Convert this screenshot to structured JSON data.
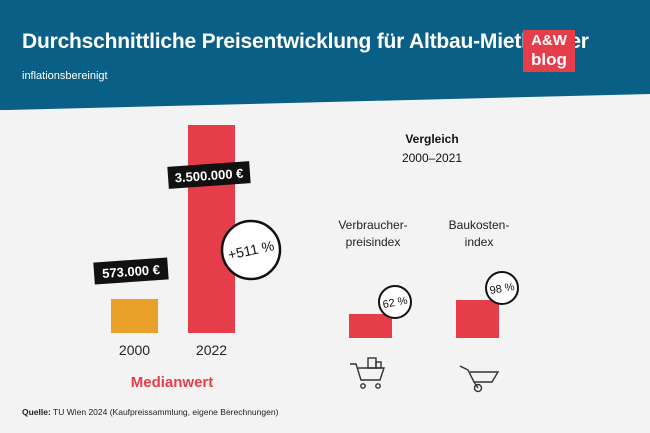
{
  "header": {
    "title": "Durchschnittliche Preisentwicklung für Altbau-Miethäuser",
    "subtitle": "inflationsbereinigt",
    "logo_top": "A&W",
    "logo_bottom": "blog"
  },
  "colors": {
    "banner": "#0a5f86",
    "accent_red": "#e63d4b",
    "orange": "#e8a02a",
    "label_bg": "#111111"
  },
  "chart_data": [
    {
      "type": "bar",
      "categories": [
        "2000",
        "2022"
      ],
      "values": [
        573000,
        3500000
      ],
      "value_labels": [
        "573.000 €",
        "3.500.000 €"
      ],
      "colors": [
        "#e8a02a",
        "#e63d4b"
      ],
      "annotation": "+511 %",
      "xlabel": "Medianwert"
    },
    {
      "type": "bar",
      "title": "Vergleich",
      "subtitle": "2000–2021",
      "categories": [
        "Verbraucher-\npreisindex",
        "Baukosten-\nindex"
      ],
      "values": [
        62,
        98
      ],
      "value_labels": [
        "62 %",
        "98 %"
      ],
      "icons": [
        "shopping-cart-icon",
        "wheelbarrow-icon"
      ]
    }
  ],
  "footer": {
    "source_label": "Quelle:",
    "source_text": " TU Wien 2024 (Kaufpreissammlung, eigene Berechnungen)"
  }
}
